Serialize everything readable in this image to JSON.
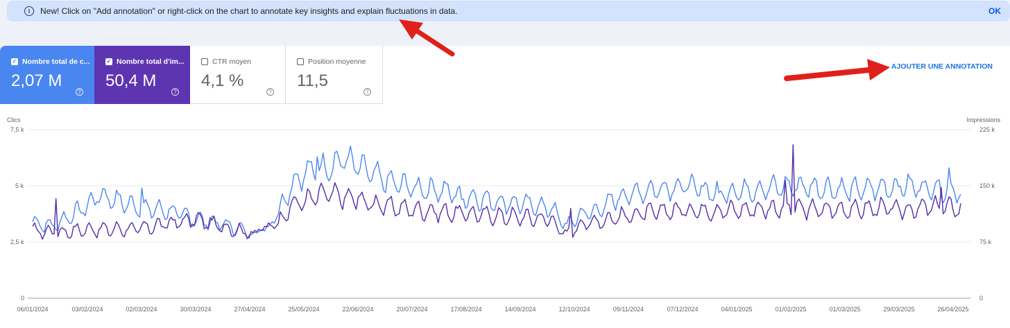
{
  "banner": {
    "message": "New! Click on \"Add annotation\" or right-click on the chart to annotate key insights and explain fluctuations in data.",
    "ok_label": "OK"
  },
  "metrics": [
    {
      "label": "Nombre total de c...",
      "value": "2,07 M",
      "checked": true,
      "color": "#4a86f0"
    },
    {
      "label": "Nombre total d'im...",
      "value": "50,4 M",
      "checked": true,
      "color": "#5e35b1"
    },
    {
      "label": "CTR moyen",
      "value": "4,1 %",
      "checked": false
    },
    {
      "label": "Position moyenne",
      "value": "11,5",
      "checked": false
    }
  ],
  "add_annotation_label": "AJOUTER UNE ANNOTATION",
  "chart_data": {
    "type": "line",
    "left_axis_title": "Clics",
    "right_axis_title": "Impressions",
    "left_ticks": [
      "7,5 k",
      "5 k",
      "2,5 k",
      "0"
    ],
    "right_ticks": [
      "225 k",
      "150 k",
      "75 k",
      "0"
    ],
    "left_ylim": [
      0,
      7500
    ],
    "right_ylim": [
      0,
      225000
    ],
    "x_tick_labels": [
      "06/01/2024",
      "03/02/2024",
      "02/03/2024",
      "30/03/2024",
      "27/04/2024",
      "25/05/2024",
      "22/06/2024",
      "20/07/2024",
      "17/08/2024",
      "14/09/2024",
      "12/10/2024",
      "09/11/2024",
      "07/12/2024",
      "04/01/2025",
      "01/02/2025",
      "01/03/2025",
      "29/03/2025",
      "26/04/2025"
    ],
    "grid": true,
    "series": [
      {
        "axis": "left",
        "color": "#4a86f0",
        "knots": [
          [
            0,
            3400
          ],
          [
            10,
            3200
          ],
          [
            20,
            3700
          ],
          [
            28,
            4100
          ],
          [
            34,
            4600
          ],
          [
            45,
            4300
          ],
          [
            56,
            4000
          ],
          [
            70,
            3900
          ],
          [
            84,
            3500
          ],
          [
            98,
            3300
          ],
          [
            105,
            3100
          ],
          [
            112,
            2900
          ],
          [
            120,
            3100
          ],
          [
            126,
            3800
          ],
          [
            133,
            5100
          ],
          [
            140,
            5600
          ],
          [
            150,
            5800
          ],
          [
            160,
            6200
          ],
          [
            170,
            5700
          ],
          [
            182,
            5200
          ],
          [
            196,
            4900
          ],
          [
            210,
            4800
          ],
          [
            224,
            4500
          ],
          [
            238,
            4300
          ],
          [
            252,
            4200
          ],
          [
            266,
            4000
          ],
          [
            274,
            3200
          ],
          [
            280,
            3700
          ],
          [
            290,
            3900
          ],
          [
            300,
            4500
          ],
          [
            310,
            4700
          ],
          [
            322,
            4900
          ],
          [
            336,
            5000
          ],
          [
            350,
            4700
          ],
          [
            364,
            4800
          ],
          [
            378,
            4900
          ],
          [
            392,
            5000
          ],
          [
            406,
            4900
          ],
          [
            420,
            4800
          ],
          [
            434,
            4900
          ],
          [
            448,
            5000
          ],
          [
            462,
            4900
          ],
          [
            476,
            4800
          ]
        ],
        "spikes": [
          [
            56,
            4900
          ],
          [
            146,
            6300
          ],
          [
            220,
            4400
          ],
          [
            352,
            4700
          ],
          [
            470,
            5800
          ]
        ]
      },
      {
        "axis": "right",
        "color": "#512da8",
        "knots": [
          [
            0,
            90000
          ],
          [
            14,
            88000
          ],
          [
            28,
            92000
          ],
          [
            42,
            92000
          ],
          [
            56,
            93000
          ],
          [
            70,
            100000
          ],
          [
            84,
            105000
          ],
          [
            98,
            95000
          ],
          [
            112,
            87000
          ],
          [
            126,
            100000
          ],
          [
            133,
            125000
          ],
          [
            140,
            130000
          ],
          [
            150,
            140000
          ],
          [
            160,
            135000
          ],
          [
            170,
            128000
          ],
          [
            182,
            123000
          ],
          [
            196,
            118000
          ],
          [
            210,
            115000
          ],
          [
            224,
            113000
          ],
          [
            238,
            110000
          ],
          [
            252,
            108000
          ],
          [
            266,
            105000
          ],
          [
            274,
            83000
          ],
          [
            280,
            98000
          ],
          [
            290,
            103000
          ],
          [
            300,
            108000
          ],
          [
            310,
            112000
          ],
          [
            322,
            116000
          ],
          [
            336,
            118000
          ],
          [
            350,
            117000
          ],
          [
            364,
            118000
          ],
          [
            378,
            120000
          ],
          [
            392,
            120000
          ],
          [
            406,
            118000
          ],
          [
            420,
            119000
          ],
          [
            434,
            120000
          ],
          [
            448,
            118000
          ],
          [
            462,
            122000
          ],
          [
            476,
            120000
          ]
        ],
        "spikes": [
          [
            12,
            133000
          ],
          [
            167,
            135000
          ],
          [
            276,
            120000
          ],
          [
            390,
            205000
          ],
          [
            386,
            158000
          ],
          [
            466,
            148000
          ]
        ]
      }
    ]
  }
}
